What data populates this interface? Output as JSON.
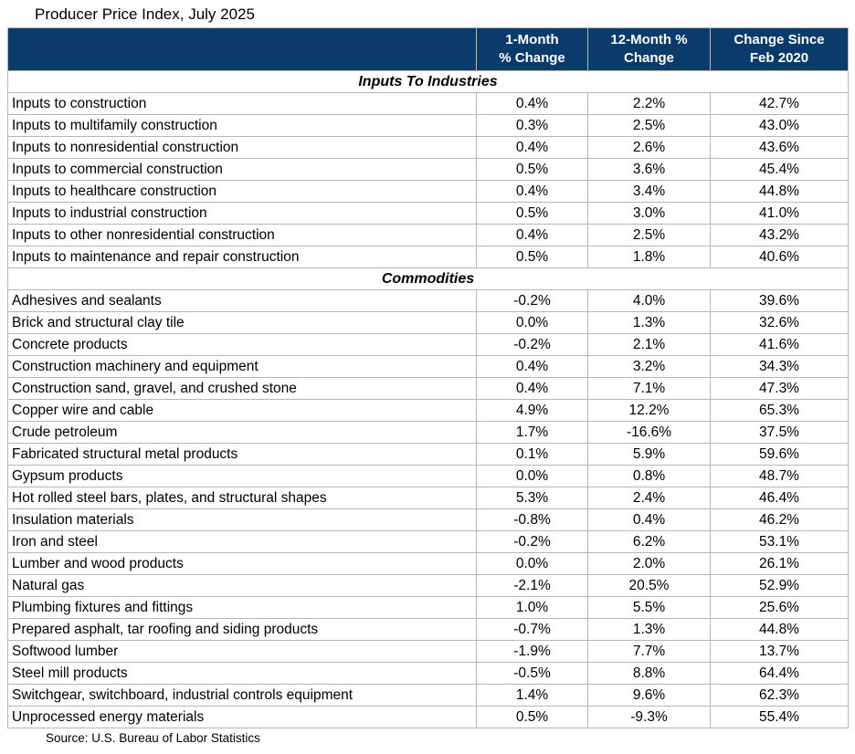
{
  "title": "Producer Price Index, July 2025",
  "source_note": "Source: U.S. Bureau of Labor Statistics",
  "colors": {
    "header_bg": "#0b3b6a",
    "header_text": "#ffffff",
    "grid_line": "#b7b7b7",
    "body_text": "#000000"
  },
  "chart_data": {
    "type": "table",
    "title": "Producer Price Index, July 2025",
    "source": "Source: U.S. Bureau of Labor Statistics",
    "columns": [
      {
        "line1": "1-Month",
        "line2": "% Change"
      },
      {
        "line1": "12-Month %",
        "line2": "Change"
      },
      {
        "line1": "Change Since",
        "line2": "Feb 2020"
      }
    ],
    "sections": [
      {
        "label": "Inputs To Industries",
        "rows": [
          {
            "label": "Inputs to construction",
            "values": [
              "0.4%",
              "2.2%",
              "42.7%"
            ]
          },
          {
            "label": "Inputs to multifamily construction",
            "values": [
              "0.3%",
              "2.5%",
              "43.0%"
            ]
          },
          {
            "label": "Inputs to nonresidential construction",
            "values": [
              "0.4%",
              "2.6%",
              "43.6%"
            ]
          },
          {
            "label": "Inputs to commercial construction",
            "values": [
              "0.5%",
              "3.6%",
              "45.4%"
            ]
          },
          {
            "label": "Inputs to healthcare construction",
            "values": [
              "0.4%",
              "3.4%",
              "44.8%"
            ]
          },
          {
            "label": "Inputs to industrial construction",
            "values": [
              "0.5%",
              "3.0%",
              "41.0%"
            ]
          },
          {
            "label": "Inputs to other nonresidential construction",
            "values": [
              "0.4%",
              "2.5%",
              "43.2%"
            ]
          },
          {
            "label": "Inputs to maintenance and repair construction",
            "values": [
              "0.5%",
              "1.8%",
              "40.6%"
            ]
          }
        ]
      },
      {
        "label": "Commodities",
        "rows": [
          {
            "label": "Adhesives and sealants",
            "values": [
              "-0.2%",
              "4.0%",
              "39.6%"
            ]
          },
          {
            "label": "Brick and structural clay tile",
            "values": [
              "0.0%",
              "1.3%",
              "32.6%"
            ]
          },
          {
            "label": "Concrete products",
            "values": [
              "-0.2%",
              "2.1%",
              "41.6%"
            ]
          },
          {
            "label": "Construction machinery and equipment",
            "values": [
              "0.4%",
              "3.2%",
              "34.3%"
            ]
          },
          {
            "label": "Construction sand, gravel, and crushed stone",
            "values": [
              "0.4%",
              "7.1%",
              "47.3%"
            ]
          },
          {
            "label": "Copper wire and cable",
            "values": [
              "4.9%",
              "12.2%",
              "65.3%"
            ]
          },
          {
            "label": "Crude petroleum",
            "values": [
              "1.7%",
              "-16.6%",
              "37.5%"
            ]
          },
          {
            "label": "Fabricated structural metal products",
            "values": [
              "0.1%",
              "5.9%",
              "59.6%"
            ]
          },
          {
            "label": "Gypsum products",
            "values": [
              "0.0%",
              "0.8%",
              "48.7%"
            ]
          },
          {
            "label": "Hot rolled steel bars, plates, and structural shapes",
            "values": [
              "5.3%",
              "2.4%",
              "46.4%"
            ]
          },
          {
            "label": "Insulation materials",
            "values": [
              "-0.8%",
              "0.4%",
              "46.2%"
            ]
          },
          {
            "label": "Iron and steel",
            "values": [
              "-0.2%",
              "6.2%",
              "53.1%"
            ]
          },
          {
            "label": "Lumber and wood products",
            "values": [
              "0.0%",
              "2.0%",
              "26.1%"
            ]
          },
          {
            "label": "Natural gas",
            "values": [
              "-2.1%",
              "20.5%",
              "52.9%"
            ]
          },
          {
            "label": "Plumbing fixtures and fittings",
            "values": [
              "1.0%",
              "5.5%",
              "25.6%"
            ]
          },
          {
            "label": "Prepared asphalt, tar roofing and siding products",
            "values": [
              "-0.7%",
              "1.3%",
              "44.8%"
            ]
          },
          {
            "label": "Softwood lumber",
            "values": [
              "-1.9%",
              "7.7%",
              "13.7%"
            ]
          },
          {
            "label": "Steel mill products",
            "values": [
              "-0.5%",
              "8.8%",
              "64.4%"
            ]
          },
          {
            "label": "Switchgear, switchboard, industrial controls equipment",
            "values": [
              "1.4%",
              "9.6%",
              "62.3%"
            ]
          },
          {
            "label": "Unprocessed energy materials",
            "values": [
              "0.5%",
              "-9.3%",
              "55.4%"
            ]
          }
        ]
      }
    ]
  }
}
